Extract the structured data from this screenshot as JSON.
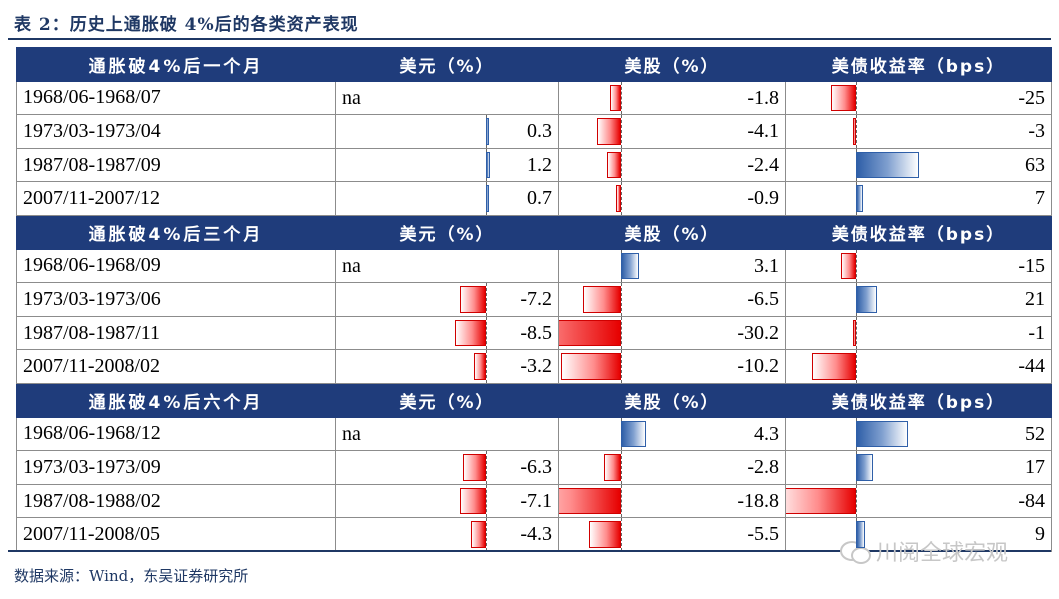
{
  "title": "表 2：历史上通胀破 4%后的各类资产表现",
  "source": "数据来源：Wind，东吴证券研究所",
  "watermark": "川阅全球宏观",
  "colors": {
    "header_bg": "#1f3c7b",
    "negative_bar": "#e60000",
    "positive_bar": "#2f5fa8"
  },
  "blocks": [
    {
      "header": {
        "period": "通胀破4%后一个月",
        "usd": "美元（%）",
        "stocks": "美股（%）",
        "bonds": "美债收益率（bps）"
      },
      "rows": [
        {
          "period": "1968/06-1968/07",
          "usd": "na",
          "stocks": "-1.8",
          "bonds": "-25"
        },
        {
          "period": "1973/03-1973/04",
          "usd": "0.3",
          "stocks": "-4.1",
          "bonds": "-3"
        },
        {
          "period": "1987/08-1987/09",
          "usd": "1.2",
          "stocks": "-2.4",
          "bonds": "63"
        },
        {
          "period": "2007/11-2007/12",
          "usd": "0.7",
          "stocks": "-0.9",
          "bonds": "7"
        }
      ]
    },
    {
      "header": {
        "period": "通胀破4%后三个月",
        "usd": "美元（%）",
        "stocks": "美股（%）",
        "bonds": "美债收益率（bps）"
      },
      "rows": [
        {
          "period": "1968/06-1968/09",
          "usd": "na",
          "stocks": "3.1",
          "bonds": "-15"
        },
        {
          "period": "1973/03-1973/06",
          "usd": "-7.2",
          "stocks": "-6.5",
          "bonds": "21"
        },
        {
          "period": "1987/08-1987/11",
          "usd": "-8.5",
          "stocks": "-30.2",
          "bonds": "-1"
        },
        {
          "period": "2007/11-2008/02",
          "usd": "-3.2",
          "stocks": "-10.2",
          "bonds": "-44"
        }
      ]
    },
    {
      "header": {
        "period": "通胀破4%后六个月",
        "usd": "美元（%）",
        "stocks": "美股（%）",
        "bonds": "美债收益率（bps）"
      },
      "rows": [
        {
          "period": "1968/06-1968/12",
          "usd": "na",
          "stocks": "4.3",
          "bonds": "52"
        },
        {
          "period": "1973/03-1973/09",
          "usd": "-6.3",
          "stocks": "-2.8",
          "bonds": "17"
        },
        {
          "period": "1987/08-1988/02",
          "usd": "-7.1",
          "stocks": "-18.8",
          "bonds": "-84"
        },
        {
          "period": "2007/11-2008/05",
          "usd": "-4.3",
          "stocks": "-5.5",
          "bonds": "9"
        }
      ]
    }
  ]
}
